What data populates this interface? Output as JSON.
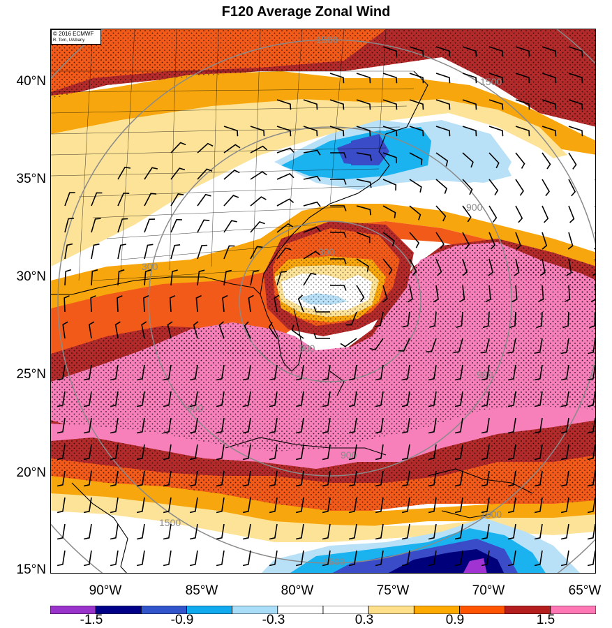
{
  "title": "F120 Average Zonal Wind",
  "credit": {
    "line1": "© 2016 ECMWF",
    "line2": "R. Torn, UAlbany"
  },
  "lat_labels": [
    "40°N",
    "35°N",
    "30°N",
    "25°N",
    "20°N",
    "15°N"
  ],
  "lon_labels": [
    "90°W",
    "85°W",
    "80°W",
    "75°W",
    "70°W",
    "65°W"
  ],
  "colorbar": {
    "labels": [
      "-1.5",
      "-0.9",
      "-0.3",
      "0.3",
      "0.9",
      "1.5"
    ],
    "colors": [
      "#9933cc",
      "#000088",
      "#3355cc",
      "#11aaee",
      "#aaddf7",
      "#ffffff",
      "#ffffff",
      "#ffe08a",
      "#ffaa00",
      "#ff5500",
      "#b41e1e",
      "#ff77b4"
    ]
  },
  "contour_labels": [
    "1500",
    "1500",
    "900",
    "300",
    "300",
    "900",
    "900",
    "900",
    "900",
    "1500",
    "1500",
    "1500"
  ],
  "colors": {
    "pink": "#f77fba",
    "darkred": "#b32a2a",
    "red": "#f25a1a",
    "orange": "#f7a70d",
    "yellow": "#fde397",
    "lightblue": "#b8e0f7",
    "cyan": "#1ab2ef",
    "blue": "#3b4cc9",
    "navy": "#00007a",
    "purple": "#a033d1",
    "contour": "#8a8a8a"
  },
  "map_extent": {
    "lon": [
      -92.5,
      -65
    ],
    "lat": [
      15,
      42.5
    ]
  }
}
